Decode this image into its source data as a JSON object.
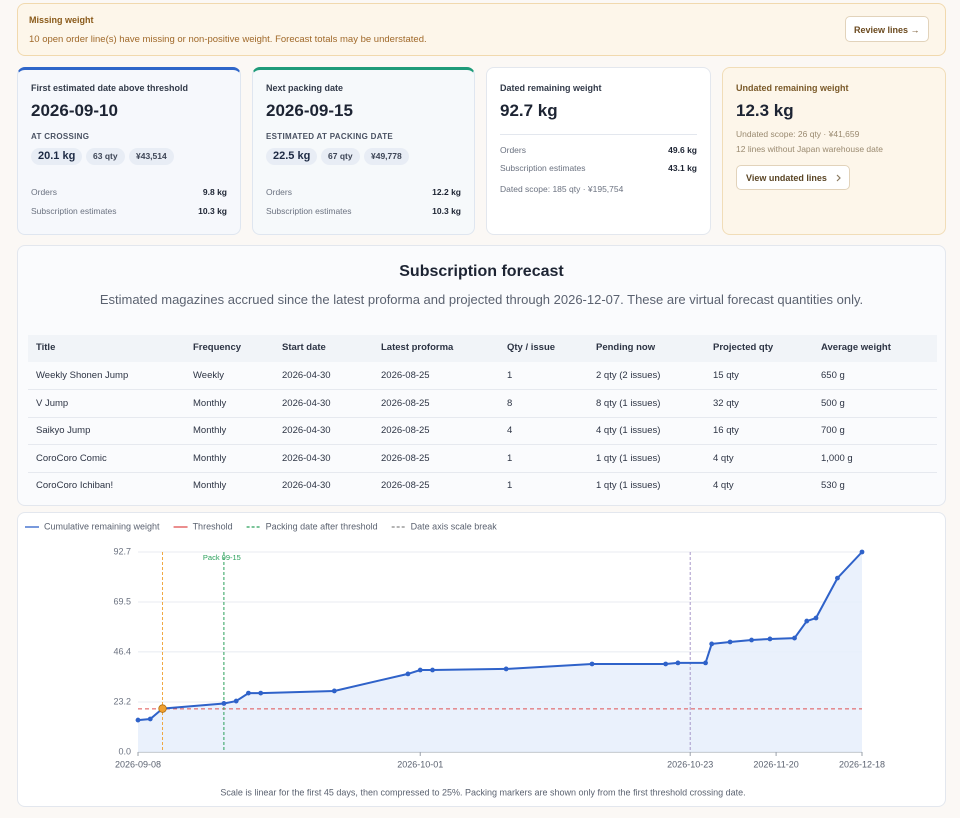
{
  "alert": {
    "title": "Missing weight",
    "message": "10 open order line(s) have missing or non-positive weight. Forecast totals may be understated.",
    "button": "Review lines →"
  },
  "cards": [
    {
      "title": "First estimated date above threshold",
      "value": "2026-09-10",
      "sublabel": "AT CROSSING",
      "chips": [
        "20.1 kg",
        "63 qty",
        "¥43,514"
      ],
      "rows": [
        [
          "Orders",
          "9.8 kg"
        ],
        [
          "Subscription estimates",
          "10.3 kg"
        ]
      ]
    },
    {
      "title": "Next packing date",
      "value": "2026-09-15",
      "sublabel": "ESTIMATED AT PACKING DATE",
      "chips": [
        "22.5 kg",
        "67 qty",
        "¥49,778"
      ],
      "rows": [
        [
          "Orders",
          "12.2 kg"
        ],
        [
          "Subscription estimates",
          "10.3 kg"
        ]
      ]
    },
    {
      "title": "Dated remaining weight",
      "value": "92.7 kg",
      "rows": [
        [
          "Orders",
          "49.6 kg"
        ],
        [
          "Subscription estimates",
          "43.1 kg"
        ]
      ],
      "notes": [
        "Dated scope: 185 qty · ¥195,754"
      ]
    },
    {
      "title": "Undated remaining weight",
      "value": "12.3 kg",
      "notes": [
        "Undated scope: 26 qty · ¥41,659",
        "12 lines without Japan warehouse date"
      ],
      "button": "View undated lines"
    }
  ],
  "forecast": {
    "title": "Subscription forecast",
    "subtitle": "Estimated magazines accrued since the latest proforma and projected through 2026-12-07. These are virtual forecast quantities only.",
    "columns": [
      "Title",
      "Frequency",
      "Start date",
      "Latest proforma",
      "Qty / issue",
      "Pending now",
      "Projected qty",
      "Average weight"
    ],
    "rows": [
      [
        "Weekly Shonen Jump",
        "Weekly",
        "2026-04-30",
        "2026-08-25",
        "1",
        "2 qty (2 issues)",
        "15 qty",
        "650 g"
      ],
      [
        "V Jump",
        "Monthly",
        "2026-04-30",
        "2026-08-25",
        "8",
        "8 qty (1 issues)",
        "32 qty",
        "500 g"
      ],
      [
        "Saikyo Jump",
        "Monthly",
        "2026-04-30",
        "2026-08-25",
        "4",
        "4 qty (1 issues)",
        "16 qty",
        "700 g"
      ],
      [
        "CoroCoro Comic",
        "Monthly",
        "2026-04-30",
        "2026-08-25",
        "1",
        "1 qty (1 issues)",
        "4 qty",
        "1,000 g"
      ],
      [
        "CoroCoro Ichiban!",
        "Monthly",
        "2026-04-30",
        "2026-08-25",
        "1",
        "1 qty (1 issues)",
        "4 qty",
        "530 g"
      ]
    ]
  },
  "chart_data": {
    "type": "line",
    "x": [
      "2026-09-08",
      "2026-09-09",
      "2026-09-10",
      "2026-09-15",
      "2026-09-16",
      "2026-09-17",
      "2026-09-18",
      "2026-09-24",
      "2026-09-30",
      "2026-10-01",
      "2026-10-02",
      "2026-10-08",
      "2026-10-15",
      "2026-10-21",
      "2026-10-22",
      "2026-10-28",
      "2026-10-30",
      "2026-11-05",
      "2026-11-12",
      "2026-11-18",
      "2026-11-26",
      "2026-11-30",
      "2026-12-03",
      "2026-12-10",
      "2026-12-18"
    ],
    "series": [
      {
        "name": "Cumulative remaining weight",
        "color": "#2f62c9",
        "values": [
          14.8,
          15.3,
          20.1,
          22.5,
          23.6,
          27.3,
          27.3,
          28.3,
          36.2,
          38.0,
          38.0,
          38.5,
          40.8,
          40.8,
          41.3,
          41.3,
          50.1,
          51.0,
          51.9,
          52.4,
          52.8,
          60.7,
          62.1,
          80.6,
          92.7
        ]
      }
    ],
    "threshold": {
      "name": "Threshold",
      "value": 20,
      "color": "#e05252"
    },
    "packing": {
      "name": "Packing date after threshold",
      "date": "2026-09-15",
      "label": "Pack 09-15",
      "color": "#2aa05a"
    },
    "scale_break": {
      "name": "Date axis scale break",
      "date": "2026-10-23",
      "factor": 0.25,
      "color": "#a897c9"
    },
    "crossing": {
      "date": "2026-09-10",
      "color": "#f0a030"
    },
    "xlim": [
      "2026-09-08",
      "2026-12-18"
    ],
    "xticks": [
      "2026-09-08",
      "2026-10-01",
      "2026-10-23",
      "2026-11-20",
      "2026-12-18"
    ],
    "ylim": [
      0,
      92.7
    ],
    "yticks": [
      {
        "value": 0,
        "label": "0.0"
      },
      23.2,
      46.4,
      69.5,
      92.7
    ],
    "grid": true,
    "area": true,
    "caption": "Scale is linear for the first 45 days, then compressed to 25%. Packing markers are shown only from the first threshold crossing date."
  }
}
